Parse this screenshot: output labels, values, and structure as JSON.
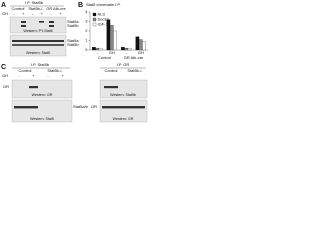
{
  "panel_a": {
    "label": "A",
    "ip": "I.P. Stat5b",
    "groups": [
      "Control",
      "Stat5b-/-",
      "GR Alb-cre"
    ],
    "treatment": "GH",
    "lanes": [
      "-",
      "+",
      "-",
      "+",
      "-",
      "+"
    ],
    "blot1_bands": [
      "Stat5a",
      "Stat5b"
    ],
    "blot1_western": "Western: PY-Stat5",
    "blot2_bands": [
      "Stat5a",
      "Stat5b"
    ],
    "blot2_western": "Western: Stat5"
  },
  "panel_b": {
    "label": "B",
    "chart_data": {
      "type": "bar",
      "title": "Stat5 chromatin I.P.",
      "categories": [
        "-",
        "GH",
        "-",
        "GH"
      ],
      "groups": [
        "Control",
        "GR Alb-cre"
      ],
      "series": [
        {
          "name": "ALS",
          "color": "#111111",
          "values": [
            0.3,
            3.2,
            0.3,
            1.4
          ]
        },
        {
          "name": "Socs2",
          "color": "#888888",
          "values": [
            0.2,
            2.6,
            0.2,
            1.1
          ]
        },
        {
          "name": "IGF-1",
          "color": "#ffffff",
          "values": [
            0.2,
            2.0,
            0.2,
            0.9
          ]
        }
      ],
      "ylim": [
        0,
        4
      ],
      "yticks": [
        0,
        1,
        2,
        3,
        4
      ]
    }
  },
  "panel_c": {
    "label": "C",
    "left": {
      "ip": "I.P. Stat5b",
      "groups": [
        "Control",
        "Stat5b-/-"
      ],
      "treatment": "GH",
      "lanes": [
        "-",
        "+",
        "-",
        "+"
      ],
      "blot1_band": "GR",
      "blot1_western": "Western: GR",
      "blot2_band": "Stat5a/b",
      "blot2_western": "Western: Stat5"
    },
    "right": {
      "ip": "I.P. GR",
      "groups": [
        "Control",
        "Stat5b-/-"
      ],
      "blot1_western": "Western: Stat5b",
      "blot2_band": "GR",
      "blot2_western": "Western: GR"
    }
  }
}
